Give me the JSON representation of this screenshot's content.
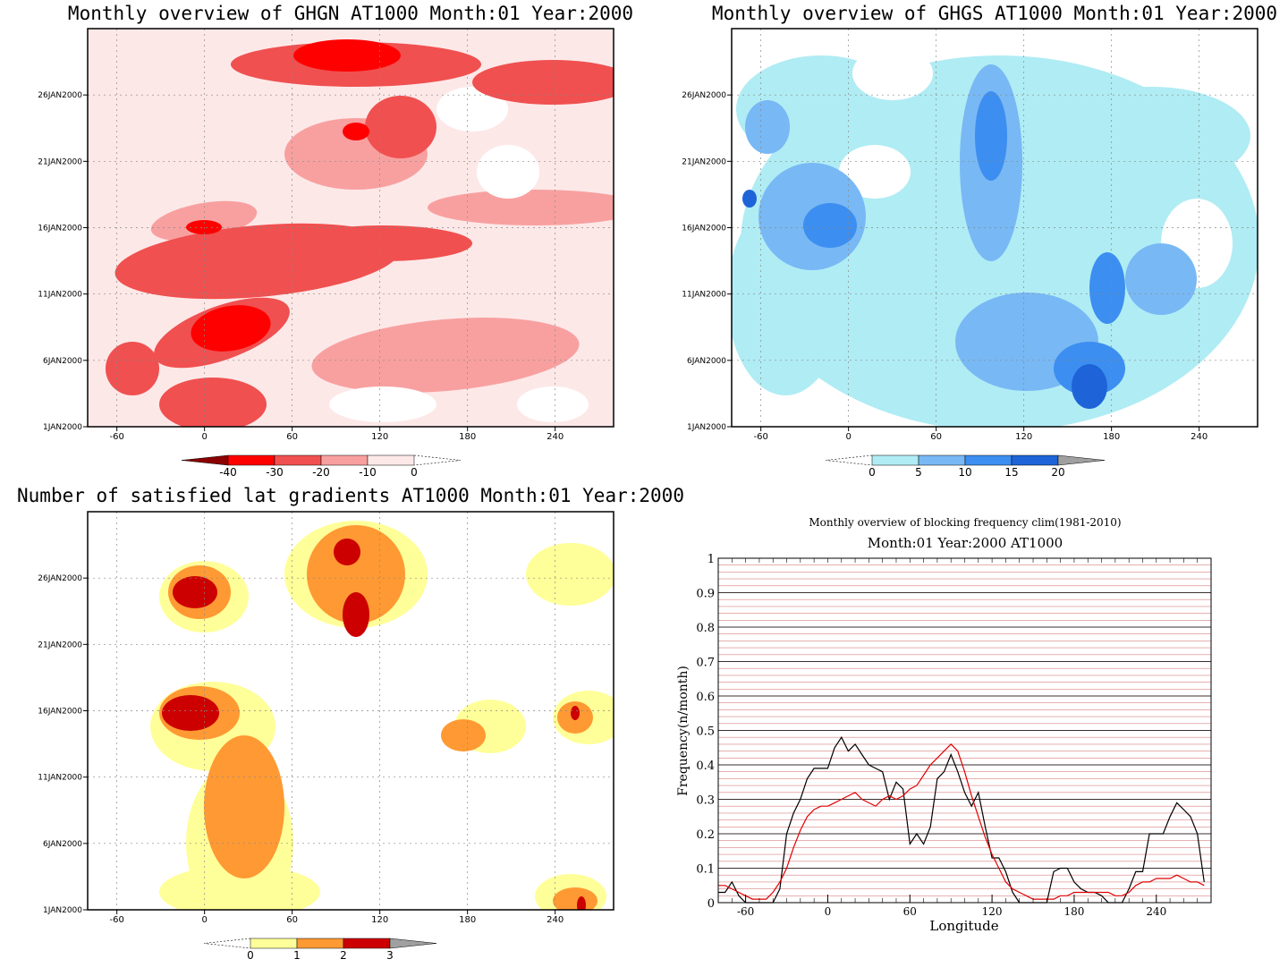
{
  "chart_data": [
    {
      "type": "heatmap",
      "title": "Monthly overview of GHGN AT1000 Month:01 Year:2000",
      "x_ticks": [
        -60,
        0,
        60,
        120,
        180,
        240
      ],
      "xlim": [
        -80,
        280
      ],
      "y_ticks": [
        "1JAN2000",
        "6JAN2000",
        "11JAN2000",
        "16JAN2000",
        "21JAN2000",
        "26JAN2000"
      ],
      "ylim": [
        1,
        31
      ],
      "colorbar": {
        "levels": [
          "-40",
          "-30",
          "-20",
          "-10",
          "0"
        ],
        "colors": [
          "#8b0000",
          "#ff0000",
          "#f05050",
          "#f8a0a0",
          "#fde8e8",
          "#ffffff"
        ]
      },
      "grid": true
    },
    {
      "type": "heatmap",
      "title": "Monthly overview of GHGS AT1000 Month:01 Year:2000",
      "x_ticks": [
        -60,
        0,
        60,
        120,
        180,
        240
      ],
      "xlim": [
        -80,
        280
      ],
      "y_ticks": [
        "1JAN2000",
        "6JAN2000",
        "11JAN2000",
        "16JAN2000",
        "21JAN2000",
        "26JAN2000"
      ],
      "ylim": [
        1,
        31
      ],
      "colorbar": {
        "levels": [
          "0",
          "5",
          "10",
          "15",
          "20"
        ],
        "colors": [
          "#ffffff",
          "#b0ecf4",
          "#78b8f4",
          "#3c8ef0",
          "#1e64d8",
          "#a0a0a0"
        ]
      },
      "grid": true
    },
    {
      "type": "heatmap",
      "title": "Number of satisfied lat gradients AT1000 Month:01 Year:2000",
      "x_ticks": [
        -60,
        0,
        60,
        120,
        180,
        240
      ],
      "xlim": [
        -80,
        280
      ],
      "y_ticks": [
        "1JAN2000",
        "6JAN2000",
        "11JAN2000",
        "16JAN2000",
        "21JAN2000",
        "26JAN2000"
      ],
      "ylim": [
        1,
        31
      ],
      "colorbar": {
        "levels": [
          "0",
          "1",
          "2",
          "3"
        ],
        "colors": [
          "#ffffff",
          "#ffff99",
          "#ff9933",
          "#cc0000",
          "#a0a0a0"
        ]
      },
      "grid": true
    },
    {
      "type": "line",
      "title": "Monthly overview of blocking frequency clim(1981-2010)",
      "subtitle": "Month:01 Year:2000  AT1000",
      "xlabel": "Longitude",
      "ylabel": "Frequency(n/month)",
      "xlim": [
        -80,
        280
      ],
      "ylim": [
        0,
        1
      ],
      "x_ticks": [
        -60,
        0,
        60,
        120,
        180,
        240
      ],
      "y_ticks": [
        "0",
        "0.1",
        "0.2",
        "0.3",
        "0.4",
        "0.5",
        "0.6",
        "0.7",
        "0.8",
        "0.9",
        "1"
      ],
      "series": [
        {
          "color": "#000000",
          "x": [
            -80,
            -75,
            -70,
            -65,
            -60,
            -55,
            -50,
            -45,
            -40,
            -35,
            -30,
            -25,
            -20,
            -15,
            -10,
            -5,
            0,
            5,
            10,
            15,
            20,
            25,
            30,
            35,
            40,
            45,
            50,
            55,
            60,
            65,
            70,
            75,
            80,
            85,
            90,
            95,
            100,
            105,
            110,
            115,
            120,
            125,
            130,
            135,
            140,
            145,
            150,
            155,
            160,
            165,
            170,
            175,
            180,
            185,
            190,
            195,
            200,
            205,
            210,
            215,
            220,
            225,
            230,
            235,
            240,
            245,
            250,
            255,
            260,
            265,
            270,
            275
          ],
          "y": [
            0.03,
            0.03,
            0.06,
            0.02,
            0.0,
            0.0,
            0.0,
            0.0,
            0.0,
            0.04,
            0.2,
            0.26,
            0.3,
            0.36,
            0.39,
            0.39,
            0.39,
            0.45,
            0.48,
            0.44,
            0.46,
            0.43,
            0.4,
            0.39,
            0.38,
            0.3,
            0.35,
            0.33,
            0.17,
            0.2,
            0.17,
            0.22,
            0.36,
            0.38,
            0.43,
            0.38,
            0.32,
            0.28,
            0.32,
            0.22,
            0.13,
            0.13,
            0.09,
            0.03,
            0.0,
            0.0,
            0.0,
            0.0,
            0.0,
            0.09,
            0.1,
            0.1,
            0.06,
            0.04,
            0.03,
            0.03,
            0.02,
            0.0,
            0.0,
            0.0,
            0.04,
            0.09,
            0.09,
            0.2,
            0.2,
            0.2,
            0.25,
            0.29,
            0.27,
            0.25,
            0.2,
            0.06
          ]
        },
        {
          "color": "#e00000",
          "x": [
            -80,
            -75,
            -70,
            -65,
            -60,
            -55,
            -50,
            -45,
            -40,
            -35,
            -30,
            -25,
            -20,
            -15,
            -10,
            -5,
            0,
            5,
            10,
            15,
            20,
            25,
            30,
            35,
            40,
            45,
            50,
            55,
            60,
            65,
            70,
            75,
            80,
            85,
            90,
            95,
            100,
            105,
            110,
            115,
            120,
            125,
            130,
            135,
            140,
            145,
            150,
            155,
            160,
            165,
            170,
            175,
            180,
            185,
            190,
            195,
            200,
            205,
            210,
            215,
            220,
            225,
            230,
            235,
            240,
            245,
            250,
            255,
            260,
            265,
            270,
            275
          ],
          "y": [
            0.05,
            0.05,
            0.04,
            0.03,
            0.02,
            0.01,
            0.01,
            0.01,
            0.03,
            0.06,
            0.1,
            0.16,
            0.21,
            0.25,
            0.27,
            0.28,
            0.28,
            0.29,
            0.3,
            0.31,
            0.32,
            0.3,
            0.29,
            0.28,
            0.3,
            0.31,
            0.3,
            0.31,
            0.33,
            0.34,
            0.37,
            0.4,
            0.42,
            0.44,
            0.46,
            0.44,
            0.38,
            0.31,
            0.25,
            0.19,
            0.14,
            0.1,
            0.06,
            0.04,
            0.03,
            0.02,
            0.01,
            0.01,
            0.01,
            0.01,
            0.02,
            0.02,
            0.03,
            0.03,
            0.03,
            0.03,
            0.03,
            0.03,
            0.02,
            0.02,
            0.03,
            0.05,
            0.06,
            0.06,
            0.07,
            0.07,
            0.07,
            0.08,
            0.07,
            0.06,
            0.06,
            0.05
          ]
        }
      ],
      "grid": true
    }
  ]
}
